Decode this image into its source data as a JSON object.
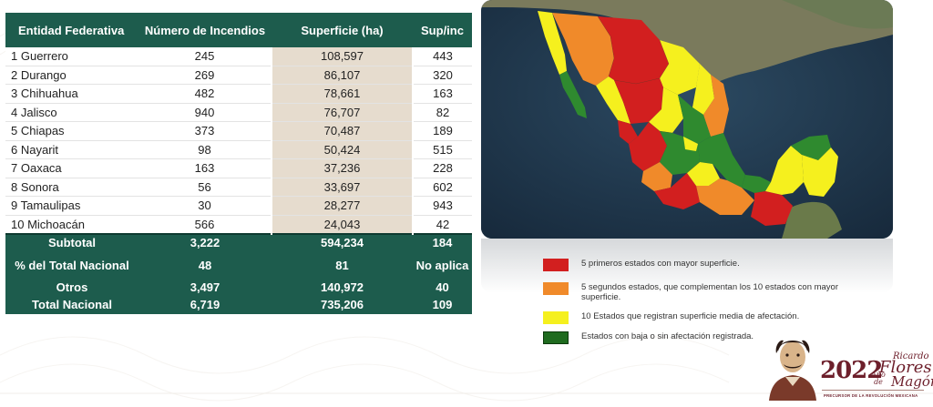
{
  "table": {
    "headers": [
      "Entidad Federativa",
      "Número de Incendios",
      "Superficie (ha)",
      "Sup/inc"
    ],
    "rows": [
      {
        "rank": "1",
        "name": "Guerrero",
        "incendios": "245",
        "superficie": "108,597",
        "supinc": "443"
      },
      {
        "rank": "2",
        "name": "Durango",
        "incendios": "269",
        "superficie": "86,107",
        "supinc": "320"
      },
      {
        "rank": "3",
        "name": "Chihuahua",
        "incendios": "482",
        "superficie": "78,661",
        "supinc": "163"
      },
      {
        "rank": "4",
        "name": "Jalisco",
        "incendios": "940",
        "superficie": "76,707",
        "supinc": "82"
      },
      {
        "rank": "5",
        "name": "Chiapas",
        "incendios": "373",
        "superficie": "70,487",
        "supinc": "189"
      },
      {
        "rank": "6",
        "name": "Nayarit",
        "incendios": "98",
        "superficie": "50,424",
        "supinc": "515"
      },
      {
        "rank": "7",
        "name": "Oaxaca",
        "incendios": "163",
        "superficie": "37,236",
        "supinc": "228"
      },
      {
        "rank": "8",
        "name": "Sonora",
        "incendios": "56",
        "superficie": "33,697",
        "supinc": "602"
      },
      {
        "rank": "9",
        "name": "Tamaulipas",
        "incendios": "30",
        "superficie": "28,277",
        "supinc": "943"
      },
      {
        "rank": "10",
        "name": "Michoacán",
        "incendios": "566",
        "superficie": "24,043",
        "supinc": "42"
      }
    ],
    "summary": [
      {
        "label": "Subtotal",
        "incendios": "3,222",
        "superficie": "594,234",
        "supinc": "184"
      },
      {
        "label": "% del Total Nacional",
        "incendios": "48",
        "superficie": "81",
        "supinc": "No aplica"
      },
      {
        "label": "Otros",
        "incendios": "3,497",
        "superficie": "140,972",
        "supinc": "40"
      },
      {
        "label": "Total Nacional",
        "incendios": "6,719",
        "superficie": "735,206",
        "supinc": "109"
      }
    ]
  },
  "legend": [
    {
      "color": "#d21f1f",
      "text": "5 primeros estados con mayor superficie."
    },
    {
      "color": "#f08a2a",
      "text": "5 segundos estados, que complementan los 10 estados con mayor superficie."
    },
    {
      "color": "#f5f01e",
      "text": "10 Estados que registran superficie media de afectación."
    },
    {
      "color": "#1f6b1f",
      "text": "Estados con baja o sin afectación registrada."
    }
  ],
  "logo": {
    "year": "2022",
    "anode": "Año de",
    "ricardo": "Ricardo",
    "flores": "Flores",
    "magon": "Magón",
    "subtitle": "PRECURSOR DE LA REVOLUCIÓN MEXICANA"
  },
  "colors": {
    "table_header": "#1d5c4d",
    "superficie_column": "#e6dcce",
    "map_sea": "#1f3447"
  }
}
